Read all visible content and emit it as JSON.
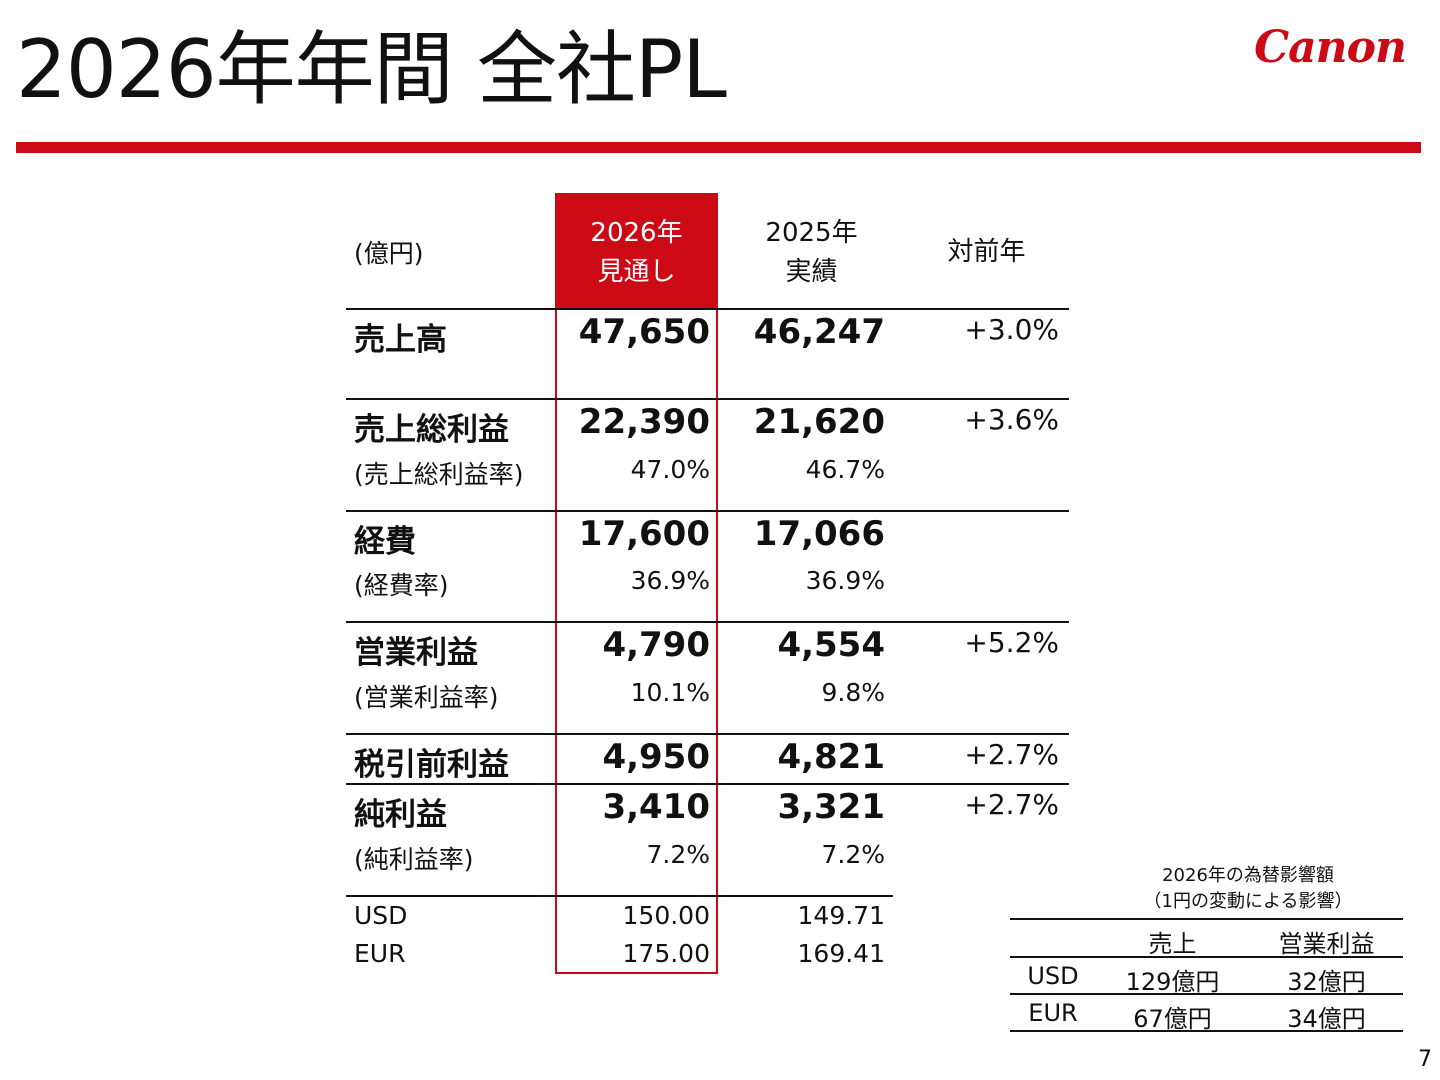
{
  "page": {
    "title": "2026年年間 全社PL",
    "logo": "Canon",
    "page_number": "7"
  },
  "main_table": {
    "unit": "(億円)",
    "headers": {
      "forecast_line1": "2026年",
      "forecast_line2": "見通し",
      "actual_line1": "2025年",
      "actual_line2": "実績",
      "yoy": "対前年"
    },
    "rows": {
      "sales": {
        "label": "売上高",
        "forecast": "47,650",
        "actual": "46,247",
        "yoy": "+3.0%"
      },
      "gross_profit": {
        "label": "売上総利益",
        "forecast": "22,390",
        "actual": "21,620",
        "yoy": "+3.6%"
      },
      "gross_margin": {
        "label": "(売上総利益率)",
        "forecast": "47.0%",
        "actual": "46.7%"
      },
      "expenses": {
        "label": "経費",
        "forecast": "17,600",
        "actual": "17,066"
      },
      "expense_ratio": {
        "label": "(経費率)",
        "forecast": "36.9%",
        "actual": "36.9%"
      },
      "operating_profit": {
        "label": "営業利益",
        "forecast": "4,790",
        "actual": "4,554",
        "yoy": "+5.2%"
      },
      "operating_margin": {
        "label": "(営業利益率)",
        "forecast": "10.1%",
        "actual": "9.8%"
      },
      "pretax_profit": {
        "label": "税引前利益",
        "forecast": "4,950",
        "actual": "4,821",
        "yoy": "+2.7%"
      },
      "net_profit": {
        "label": "純利益",
        "forecast": "3,410",
        "actual": "3,321",
        "yoy": "+2.7%"
      },
      "net_margin": {
        "label": "(純利益率)",
        "forecast": "7.2%",
        "actual": "7.2%"
      },
      "usd": {
        "label": "USD",
        "forecast": "150.00",
        "actual": "149.71"
      },
      "eur": {
        "label": "EUR",
        "forecast": "175.00",
        "actual": "169.41"
      }
    }
  },
  "fx_table": {
    "title_line1": "2026年の為替影響額",
    "title_line2": "（1円の変動による影響）",
    "headers": {
      "sales": "売上",
      "operating_profit": "営業利益"
    },
    "rows": {
      "usd": {
        "currency": "USD",
        "sales": "129億円",
        "operating_profit": "32億円"
      },
      "eur": {
        "currency": "EUR",
        "sales": "67億円",
        "operating_profit": "34億円"
      }
    }
  },
  "colors": {
    "accent": "#cc0a16",
    "text": "#111111"
  }
}
